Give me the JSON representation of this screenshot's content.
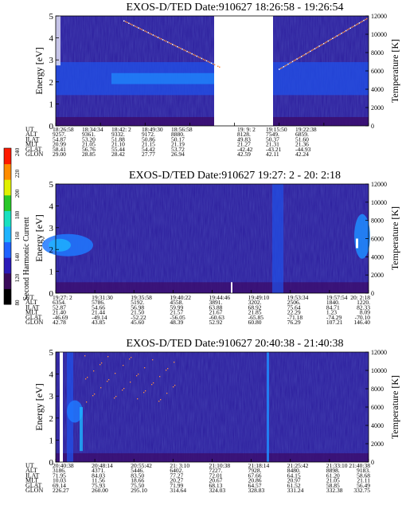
{
  "colorbar": {
    "label": "Second Harmonic Current",
    "ticks": [
      "80",
      "120",
      "140",
      "160",
      "180",
      "200",
      "220",
      "240"
    ],
    "colors": [
      "#000000",
      "#3a0a5a",
      "#2a1ab8",
      "#1e62ff",
      "#1eb4ff",
      "#18e0c0",
      "#28c828",
      "#e0f000",
      "#ff8c00",
      "#ff1a00"
    ]
  },
  "chart_data": [
    {
      "type": "heatmap",
      "title": "EXOS-D/TED   Date:910627  18:26:58 - 19:26:54",
      "ylabel": "Energy [eV]",
      "y2label": "Temperature [K]",
      "ylim": [
        0,
        5
      ],
      "y_ticks": [
        "0",
        "1",
        "2",
        "3",
        "4",
        "5"
      ],
      "y2lim": [
        0,
        12000
      ],
      "y2_ticks": [
        "0",
        "2000",
        "4000",
        "6000",
        "8000",
        "10000",
        "12000"
      ],
      "data_gap": [
        "18:56:58",
        "19:9: 2"
      ],
      "orbit_rows": [
        {
          "label": "UT",
          "values": [
            "18:26:58",
            "18:34:34",
            "18:42: 2",
            "18:49:30",
            "18:56:58",
            "19: 9: 2",
            "19:15:50",
            "19:22:38"
          ]
        },
        {
          "label": "ALT",
          "values": [
            "9257.",
            "9361.",
            "9332.",
            "9172.",
            "8880.",
            "8128.",
            "7549.",
            "6859."
          ]
        },
        {
          "label": "ILAT",
          "values": [
            "54.87",
            "53.20",
            "51.88",
            "50.86",
            "50.17",
            "49.83",
            "50.37",
            "51.60"
          ]
        },
        {
          "label": "MLT",
          "values": [
            "20.99",
            "21.05",
            "21.10",
            "21.15",
            "21.19",
            "21.27",
            "21.31",
            "21.36"
          ]
        },
        {
          "label": "GLAT",
          "values": [
            "58.41",
            "56.76",
            "55.44",
            "54.42",
            "53.72",
            "-42.42",
            "-43.21",
            "-44.93"
          ]
        },
        {
          "label": "GLON",
          "values": [
            "29.00",
            "28.85",
            "28.42",
            "27.77",
            "26.94",
            "42.59",
            "42.11",
            "42.24"
          ]
        }
      ]
    },
    {
      "type": "heatmap",
      "title": "EXOS-D/TED   Date:910627  19:27: 2 - 20: 2:18",
      "ylabel": "Energy [eV]",
      "y2label": "Temperature [K]",
      "ylim": [
        0,
        5
      ],
      "y_ticks": [
        "0",
        "1",
        "2",
        "3",
        "4",
        "5"
      ],
      "y2lim": [
        0,
        12000
      ],
      "y2_ticks": [
        "0",
        "2000",
        "4000",
        "6000",
        "8000",
        "10000",
        "12000"
      ],
      "orbit_rows": [
        {
          "label": "UT",
          "values": [
            "19:27: 2",
            "19:31:30",
            "19:35:58",
            "19:40:22",
            "19:44:46",
            "19:49:10",
            "19:53:34",
            "19:57:54",
            "20: 2:18"
          ]
        },
        {
          "label": "ALT",
          "values": [
            "6354.",
            "5786.",
            "5192.",
            "4558.",
            "3891.",
            "3202.",
            "2506.",
            "1840.",
            "1220."
          ]
        },
        {
          "label": "ILAT",
          "values": [
            "52.87",
            "54.66",
            "56.98",
            "59.99",
            "63.88",
            "68.92",
            "75.64",
            "84.71",
            "82.33"
          ]
        },
        {
          "label": "MLT",
          "values": [
            "21.40",
            "21.44",
            "21.50",
            "21.57",
            "21.67",
            "21.85",
            "22.29",
            "1.23",
            "8.09"
          ]
        },
        {
          "label": "GLAT",
          "values": [
            "-46.69",
            "-49.14",
            "-52.22",
            "-56.05",
            "-60.63",
            "-65.85",
            "-71.18",
            "-74.29",
            "-70.10"
          ]
        },
        {
          "label": "GLON",
          "values": [
            "42.78",
            "43.85",
            "45.60",
            "48.39",
            "52.92",
            "60.80",
            "76.29",
            "107.21",
            "146.40"
          ]
        }
      ]
    },
    {
      "type": "heatmap",
      "title": "EXOS-D/TED   Date:910627  20:40:38 - 21:40:38",
      "ylabel": "Energy [eV]",
      "y2label": "Temperature [K]",
      "ylim": [
        0,
        5
      ],
      "y_ticks": [
        "0",
        "1",
        "2",
        "3",
        "4",
        "5"
      ],
      "y2lim": [
        0,
        12000
      ],
      "y2_ticks": [
        "0",
        "2000",
        "4000",
        "6000",
        "8000",
        "10000",
        "12000"
      ],
      "orbit_rows": [
        {
          "label": "UT",
          "values": [
            "20:40:38",
            "20:48:14",
            "20:55:42",
            "21: 3:10",
            "21:10:38",
            "21:18:14",
            "21:25:42",
            "21:33:10",
            "21:40:38"
          ]
        },
        {
          "label": "ALT",
          "values": [
            "3186.",
            "4371.",
            "5446.",
            "6402.",
            "7227.",
            "7928.",
            "8480.",
            "8898.",
            "9183."
          ]
        },
        {
          "label": "ILAT",
          "values": [
            "71.95",
            "84.03",
            "83.50",
            "77.27",
            "72.01",
            "67.66",
            "64.15",
            "61.20",
            "58.68"
          ]
        },
        {
          "label": "MLT",
          "values": [
            "10.03",
            "11.56",
            "18.66",
            "20.27",
            "20.67",
            "20.86",
            "20.97",
            "21.05",
            "21.11"
          ]
        },
        {
          "label": "GLAT",
          "values": [
            "69.14",
            "75.93",
            "75.50",
            "71.99",
            "68.13",
            "64.57",
            "61.52",
            "58.85",
            "56.49"
          ]
        },
        {
          "label": "GLON",
          "values": [
            "226.27",
            "260.00",
            "295.10",
            "314.64",
            "324.03",
            "328.83",
            "331.24",
            "332.38",
            "332.75"
          ]
        }
      ]
    }
  ]
}
